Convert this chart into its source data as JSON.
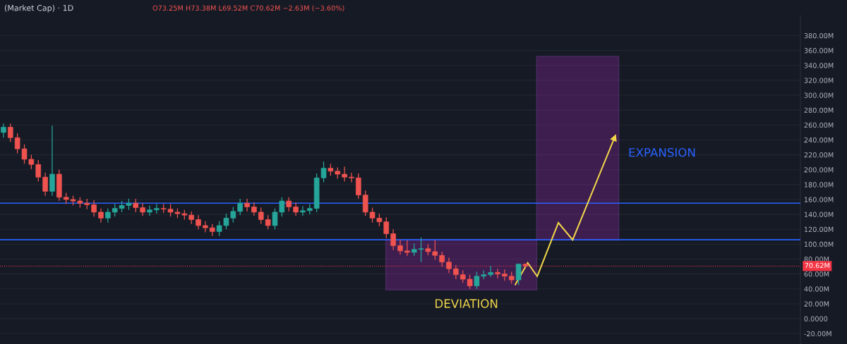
{
  "chart_data": {
    "type": "candlestick",
    "title": "(Market Cap) · 1D",
    "subtitle": "O73.25M H73.38M L69.52M C70.62M −2.63M (−3.60%)",
    "ylim": [
      -34,
      407
    ],
    "tick_labels": "y",
    "grid": true,
    "yticks": [
      {
        "value": -20,
        "label": "-20.00M"
      },
      {
        "value": 0,
        "label": "0.0000"
      },
      {
        "value": 20,
        "label": "20.00M"
      },
      {
        "value": 40,
        "label": "40.00M"
      },
      {
        "value": 60,
        "label": "60.00M"
      },
      {
        "value": 80,
        "label": "80.00M"
      },
      {
        "value": 100,
        "label": "100.00M"
      },
      {
        "value": 120,
        "label": "120.00M"
      },
      {
        "value": 140,
        "label": "140.00M"
      },
      {
        "value": 160,
        "label": "160.00M"
      },
      {
        "value": 180,
        "label": "180.00M"
      },
      {
        "value": 200,
        "label": "200.00M"
      },
      {
        "value": 220,
        "label": "220.00M"
      },
      {
        "value": 240,
        "label": "240.00M"
      },
      {
        "value": 260,
        "label": "260.00M"
      },
      {
        "value": 280,
        "label": "280.00M"
      },
      {
        "value": 300,
        "label": "300.00M"
      },
      {
        "value": 320,
        "label": "320.00M"
      },
      {
        "value": 340,
        "label": "340.00M"
      },
      {
        "value": 360,
        "label": "360.00M"
      },
      {
        "value": 380,
        "label": "380.00M"
      }
    ],
    "categories": [
      null,
      null,
      null,
      null,
      null,
      null,
      null,
      null,
      null,
      null,
      null,
      null,
      null,
      null,
      null,
      null,
      null,
      null,
      null,
      null,
      null,
      null,
      null,
      null,
      null,
      null,
      null,
      null,
      null,
      null,
      null,
      null,
      null,
      null,
      null,
      null,
      null,
      null,
      null,
      null,
      null,
      null,
      null,
      null,
      null,
      null,
      null,
      null,
      null,
      null,
      null,
      null,
      null,
      null,
      null,
      null,
      null,
      null,
      null,
      null,
      null,
      null,
      null,
      null,
      null,
      null,
      null,
      null,
      null,
      null,
      null,
      null,
      null,
      null,
      null,
      null,
      null,
      null,
      null,
      null,
      null,
      null,
      null,
      null,
      null,
      null,
      null,
      null,
      null,
      null,
      null,
      null,
      null,
      null,
      null,
      null,
      null,
      null,
      null,
      null,
      null,
      null,
      null,
      null,
      null,
      null,
      null,
      null,
      null,
      null,
      null,
      null,
      null,
      null,
      null
    ],
    "ohlc": [
      [
        250,
        262,
        243,
        257
      ],
      [
        257,
        262,
        237,
        243
      ],
      [
        243,
        249,
        222,
        228
      ],
      [
        228,
        234,
        208,
        214
      ],
      [
        214,
        220,
        201,
        207
      ],
      [
        207,
        213,
        184,
        190
      ],
      [
        190,
        196,
        165,
        171
      ],
      [
        171,
        259,
        165,
        194
      ],
      [
        194,
        200,
        158,
        163
      ],
      [
        163,
        169,
        154,
        160
      ],
      [
        160,
        165,
        152,
        158
      ],
      [
        158,
        163,
        149,
        155
      ],
      [
        155,
        161,
        147,
        153
      ],
      [
        153,
        159,
        137,
        143
      ],
      [
        143,
        148,
        129,
        135
      ],
      [
        135,
        148,
        129,
        143
      ],
      [
        143,
        154,
        137,
        148
      ],
      [
        148,
        158,
        143,
        152
      ],
      [
        152,
        161,
        146,
        155
      ],
      [
        155,
        161,
        143,
        149
      ],
      [
        149,
        155,
        138,
        143
      ],
      [
        143,
        152,
        138,
        146
      ],
      [
        146,
        154,
        141,
        148
      ],
      [
        148,
        154,
        142,
        147
      ],
      [
        147,
        154,
        137,
        143
      ],
      [
        143,
        148,
        135,
        141
      ],
      [
        141,
        146,
        133,
        139
      ],
      [
        139,
        144,
        127,
        133
      ],
      [
        133,
        139,
        120,
        125
      ],
      [
        125,
        131,
        116,
        122
      ],
      [
        122,
        127,
        111,
        117
      ],
      [
        117,
        131,
        111,
        125
      ],
      [
        125,
        141,
        120,
        135
      ],
      [
        135,
        150,
        129,
        144
      ],
      [
        144,
        161,
        139,
        155
      ],
      [
        155,
        161,
        144,
        150
      ],
      [
        150,
        156,
        138,
        143
      ],
      [
        143,
        149,
        127,
        133
      ],
      [
        133,
        139,
        120,
        125
      ],
      [
        125,
        148,
        120,
        143
      ],
      [
        143,
        163,
        137,
        158
      ],
      [
        158,
        163,
        144,
        150
      ],
      [
        150,
        156,
        138,
        143
      ],
      [
        143,
        151,
        138,
        145
      ],
      [
        145,
        154,
        140,
        148
      ],
      [
        148,
        195,
        143,
        189
      ],
      [
        189,
        211,
        183,
        202
      ],
      [
        202,
        208,
        192,
        198
      ],
      [
        198,
        203,
        188,
        194
      ],
      [
        194,
        204,
        184,
        190
      ],
      [
        190,
        196,
        183,
        189
      ],
      [
        189,
        195,
        161,
        166
      ],
      [
        166,
        172,
        138,
        143
      ],
      [
        143,
        149,
        129,
        135
      ],
      [
        135,
        141,
        124,
        130
      ],
      [
        130,
        136,
        108,
        114
      ],
      [
        114,
        120,
        92,
        98
      ],
      [
        98,
        106,
        86,
        91
      ],
      [
        91,
        105,
        84,
        89
      ],
      [
        89,
        101,
        84,
        93
      ],
      [
        93,
        109,
        76,
        94
      ],
      [
        94,
        100,
        85,
        90
      ],
      [
        90,
        105,
        79,
        85
      ],
      [
        85,
        90,
        70,
        76
      ],
      [
        76,
        82,
        61,
        67
      ],
      [
        67,
        72,
        53,
        59
      ],
      [
        59,
        65,
        48,
        53
      ],
      [
        53,
        59,
        40,
        44
      ],
      [
        44,
        63,
        40,
        57
      ],
      [
        57,
        65,
        53,
        59
      ],
      [
        59,
        71,
        56,
        62
      ],
      [
        62,
        67,
        54,
        60
      ],
      [
        60,
        66,
        51,
        57
      ],
      [
        57,
        63,
        47,
        52
      ],
      [
        52,
        74,
        45,
        73.25
      ],
      [
        73.25,
        73.38,
        69.52,
        70.62
      ],
      null,
      null,
      null,
      null,
      null,
      null,
      null,
      null,
      null,
      null,
      null,
      null,
      null,
      null,
      null,
      null,
      null,
      null,
      null,
      null,
      null,
      null,
      null,
      null,
      null,
      null,
      null,
      null,
      null,
      null,
      null,
      null,
      null,
      null,
      null,
      null,
      null,
      null,
      null
    ],
    "ref_lines": [
      {
        "axis": "y",
        "value": 155,
        "color": "#2962ff",
        "line_style": "solid"
      },
      {
        "axis": "y",
        "value": 106,
        "color": "#2962ff",
        "line_style": "solid"
      },
      {
        "axis": "y",
        "value": 70.62,
        "label": "70.62M",
        "color": "#f23645",
        "line_style": "dotted"
      }
    ],
    "annotations": [
      "DEVIATION",
      "EXPANSION"
    ]
  }
}
